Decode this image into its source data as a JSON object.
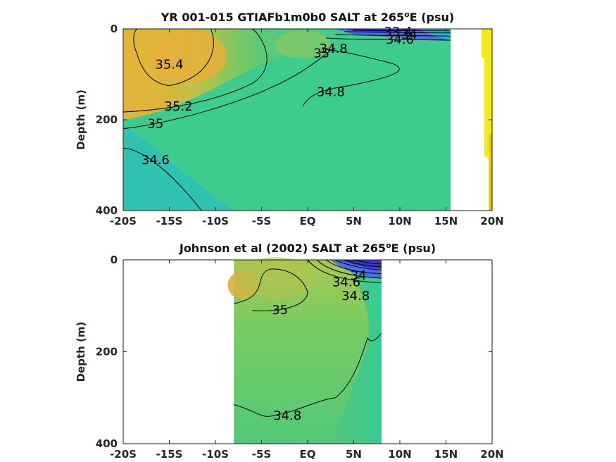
{
  "chart_data": [
    {
      "type": "heatmap",
      "title_main": "YR 001-015 GTIAFb1m0b0 SALT at 265",
      "title_sup": "o",
      "title_end": "E (psu)",
      "ylabel": "Depth (m)",
      "xlim": [
        -20,
        20
      ],
      "ylim": [
        0,
        400
      ],
      "x_ticks": [
        -20,
        -15,
        -10,
        -5,
        0,
        5,
        10,
        15,
        20
      ],
      "x_tick_labels": [
        "-20S",
        "-15S",
        "-10S",
        "-5S",
        "EQ",
        "5N",
        "10N",
        "15N",
        "20N"
      ],
      "y_ticks": [
        0,
        200,
        400
      ],
      "y_tick_labels": [
        "0",
        "200",
        "400"
      ],
      "data_extent": [
        -20,
        15.5
      ],
      "contour_labels": [
        {
          "text": "35.4",
          "x": -15,
          "y": 80
        },
        {
          "text": "35.2",
          "x": -14,
          "y": 172
        },
        {
          "text": "35",
          "x": -16.5,
          "y": 210
        },
        {
          "text": "34.6",
          "x": -16.5,
          "y": 290
        },
        {
          "text": "34.8",
          "x": 2.5,
          "y": 140
        },
        {
          "text": "35",
          "x": 1.5,
          "y": 55
        },
        {
          "text": "34.8",
          "x": 2.8,
          "y": 45
        },
        {
          "text": "34.6",
          "x": 10,
          "y": 25
        },
        {
          "text": "33.4",
          "x": 9.8,
          "y": 8
        },
        {
          "text": "34",
          "x": 11,
          "y": 14
        }
      ]
    },
    {
      "type": "heatmap",
      "title_main": "Johnson et al (2002) SALT at 265",
      "title_sup": "o",
      "title_end": "E (psu)",
      "ylabel": "Depth (m)",
      "xlim": [
        -20,
        20
      ],
      "ylim": [
        0,
        400
      ],
      "x_ticks": [
        -20,
        -15,
        -10,
        -5,
        0,
        5,
        10,
        15,
        20
      ],
      "x_tick_labels": [
        "-20S",
        "-15S",
        "-10S",
        "-5S",
        "EQ",
        "5N",
        "10N",
        "15N",
        "20N"
      ],
      "y_ticks": [
        0,
        200,
        400
      ],
      "y_tick_labels": [
        "0",
        "200",
        "400"
      ],
      "data_extent": [
        -8,
        8
      ],
      "contour_labels": [
        {
          "text": "35",
          "x": -3,
          "y": 110
        },
        {
          "text": "34.6",
          "x": 4.2,
          "y": 50
        },
        {
          "text": "34.8",
          "x": 5.2,
          "y": 80
        },
        {
          "text": "34",
          "x": 5.5,
          "y": 35
        },
        {
          "text": "34.8",
          "x": -2.2,
          "y": 340
        }
      ]
    }
  ]
}
